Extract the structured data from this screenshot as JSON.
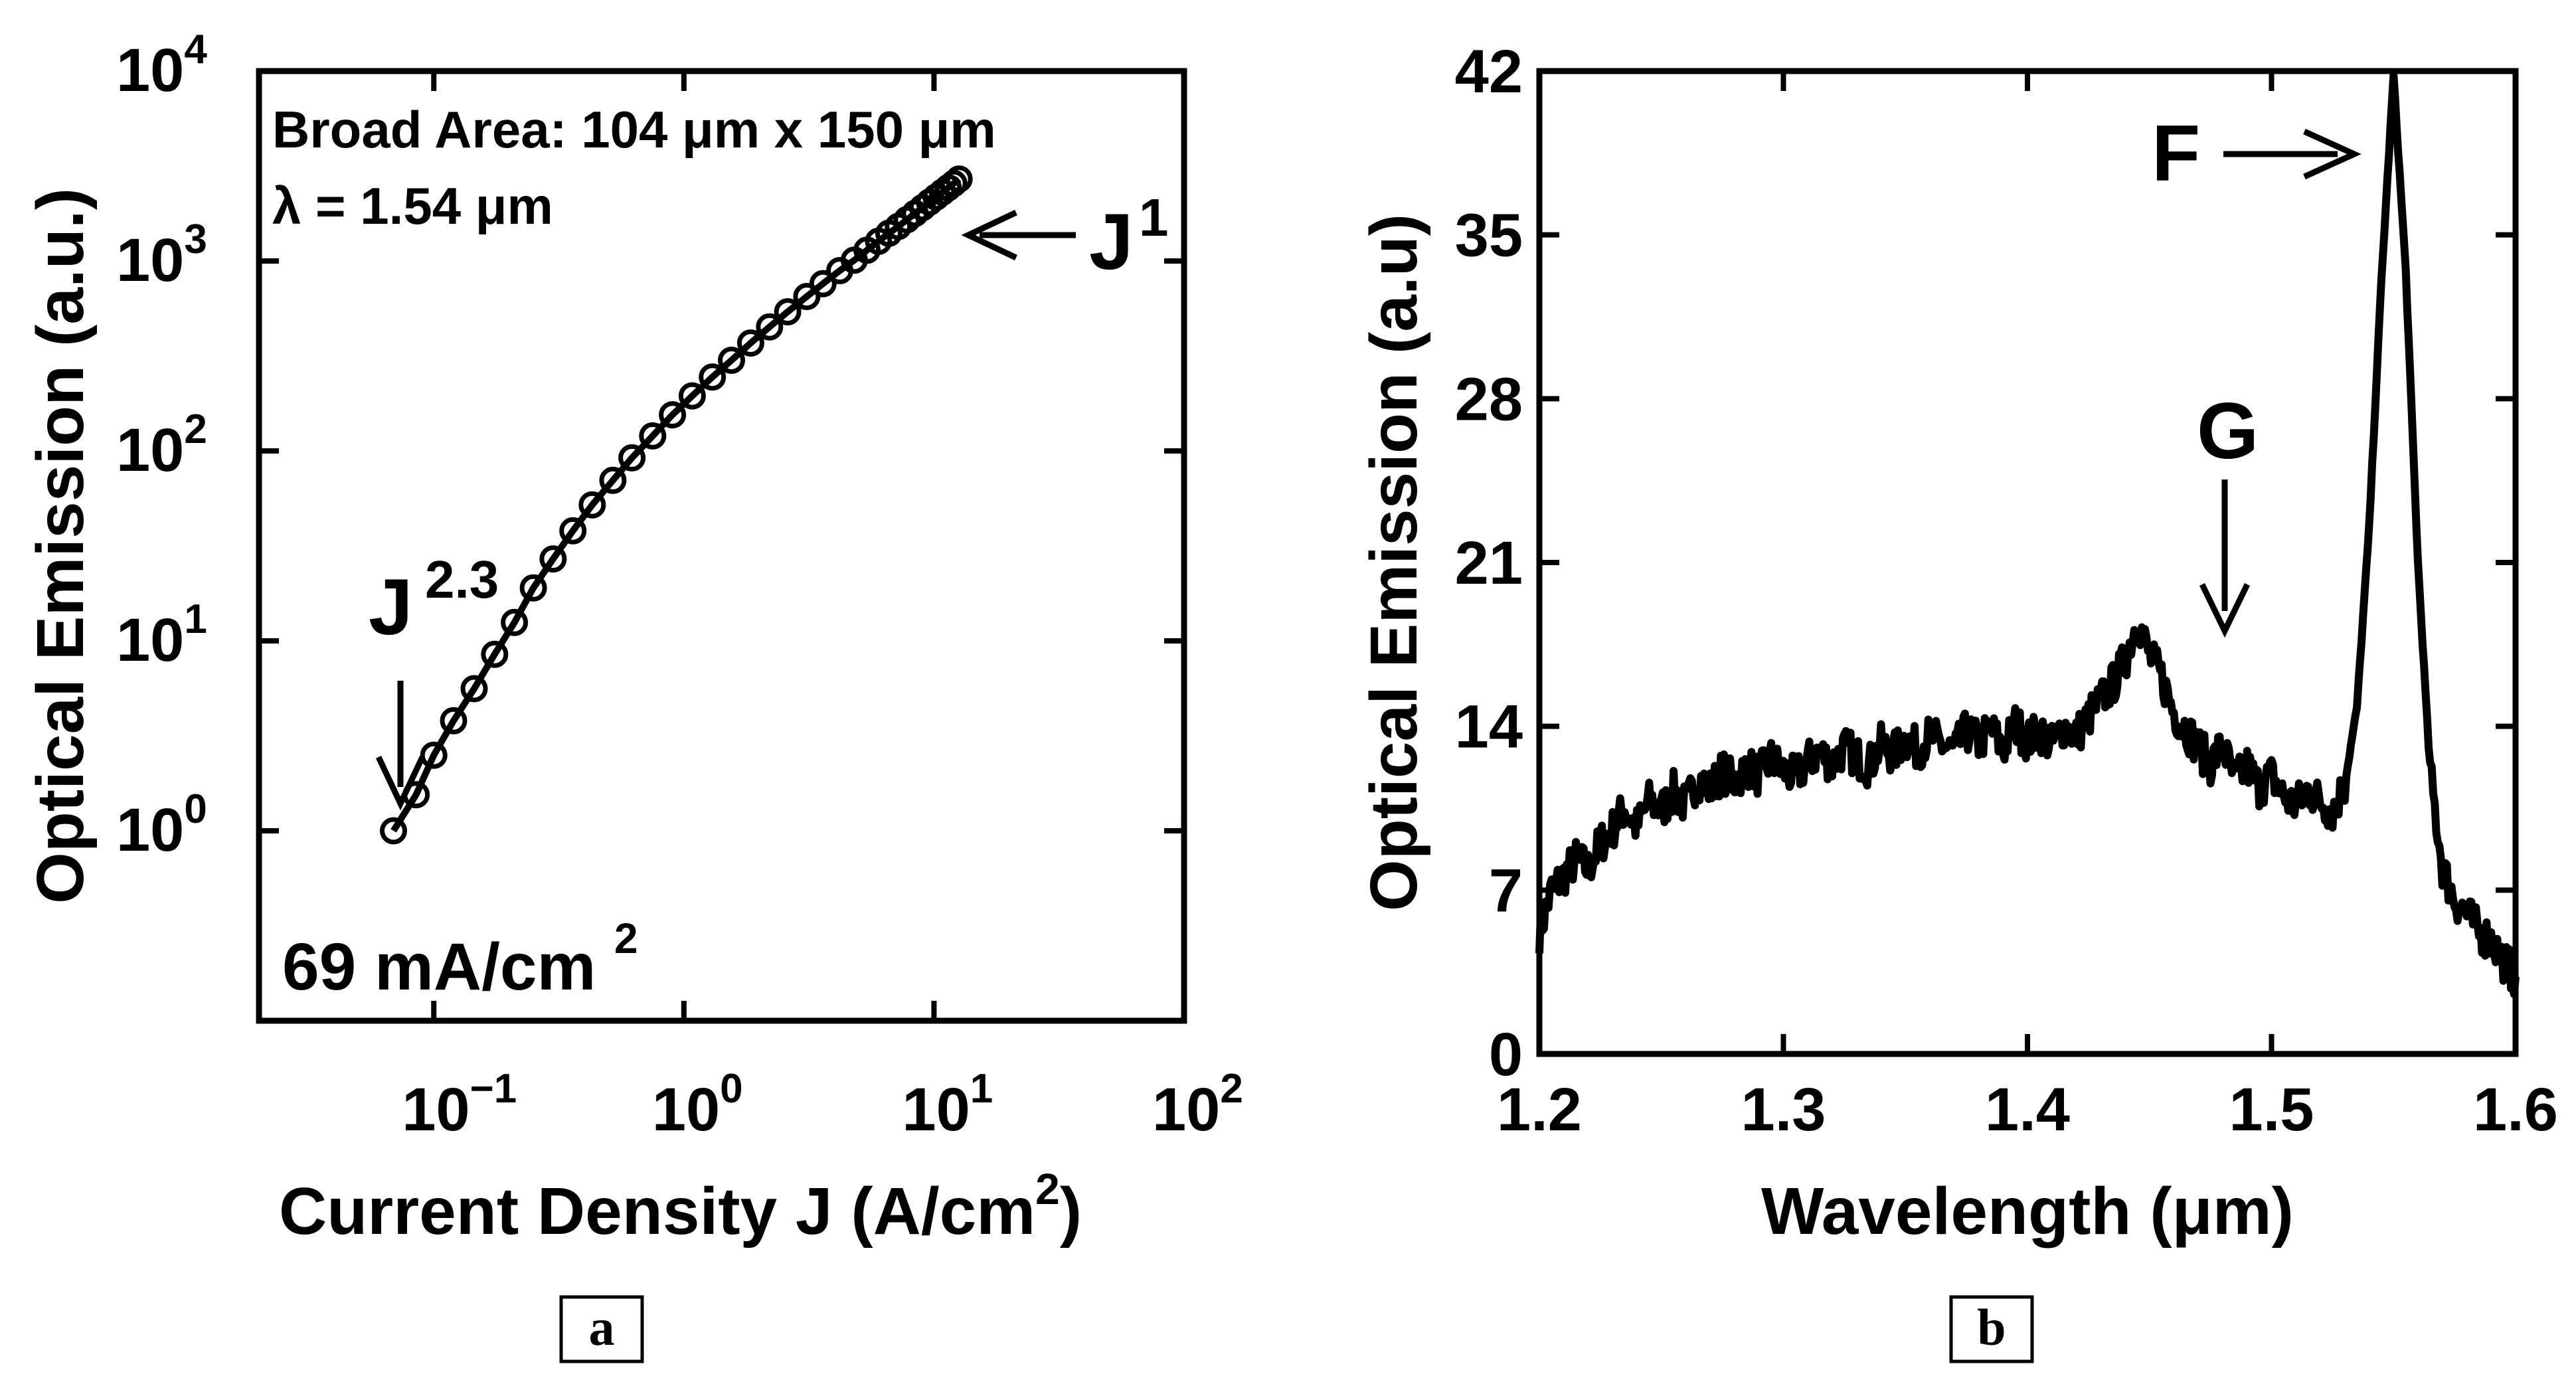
{
  "chart_data": [
    {
      "panel": "a",
      "type": "scatter",
      "scale": "log-log",
      "xlabel": "Current Density J (A/cm",
      "xlabel_sup": "2",
      "xlabel_end": ")",
      "ylabel": "Optical Emission (a.u.)",
      "xlim": [
        0.02,
        100
      ],
      "ylim": [
        0.1,
        10000
      ],
      "xticks": [
        {
          "base": "10",
          "exp": "−1",
          "value": 0.1
        },
        {
          "base": "10",
          "exp": "0",
          "value": 1
        },
        {
          "base": "10",
          "exp": "1",
          "value": 10
        },
        {
          "base": "10",
          "exp": "2",
          "value": 100
        }
      ],
      "yticks": [
        {
          "base": "10",
          "exp": "0",
          "value": 1
        },
        {
          "base": "10",
          "exp": "1",
          "value": 10
        },
        {
          "base": "10",
          "exp": "2",
          "value": 100
        },
        {
          "base": "10",
          "exp": "3",
          "value": 1000
        },
        {
          "base": "10",
          "exp": "4",
          "value": 10000
        }
      ],
      "annotation_line1": "Broad Area: 104 μm x 150 μm",
      "annotation_line2": "λ = 1.54 μm",
      "slope_low_base": "J",
      "slope_low_exp": "2.3",
      "slope_high_base": "J",
      "slope_high_exp": "1",
      "threshold_text": "69 mA/cm",
      "threshold_sup": "2",
      "x": [
        0.069,
        0.085,
        0.1,
        0.12,
        0.145,
        0.175,
        0.21,
        0.25,
        0.3,
        0.36,
        0.43,
        0.52,
        0.62,
        0.75,
        0.9,
        1.08,
        1.3,
        1.55,
        1.85,
        2.2,
        2.6,
        3.1,
        3.6,
        4.2,
        4.8,
        5.4,
        6.0,
        6.6,
        7.2,
        7.8,
        8.4,
        9.0,
        9.6,
        10.2,
        10.8,
        11.4,
        12.0,
        12.6
      ],
      "y": [
        1.0,
        1.55,
        2.5,
        3.8,
        5.6,
        8.5,
        12.5,
        19,
        27,
        38,
        52,
        70,
        92,
        120,
        155,
        195,
        245,
        300,
        370,
        450,
        540,
        650,
        760,
        890,
        1010,
        1140,
        1270,
        1400,
        1520,
        1650,
        1780,
        1910,
        2040,
        2170,
        2300,
        2430,
        2560,
        2700
      ]
    },
    {
      "panel": "b",
      "type": "line",
      "xlabel": "Wavelength (μm)",
      "ylabel": "Optical Emission (a.u)",
      "xlim": [
        1.2,
        1.6
      ],
      "ylim": [
        0,
        42
      ],
      "xticks": [
        "1.2",
        "1.3",
        "1.4",
        "1.5",
        "1.6"
      ],
      "yticks": [
        "0",
        "7",
        "14",
        "21",
        "28",
        "35",
        "42"
      ],
      "peak_F_label": "F",
      "peak_G_label": "G",
      "x": [
        1.2,
        1.205,
        1.21,
        1.215,
        1.22,
        1.225,
        1.23,
        1.235,
        1.24,
        1.245,
        1.25,
        1.255,
        1.26,
        1.265,
        1.27,
        1.275,
        1.28,
        1.285,
        1.29,
        1.295,
        1.3,
        1.305,
        1.31,
        1.315,
        1.32,
        1.325,
        1.33,
        1.335,
        1.34,
        1.345,
        1.35,
        1.355,
        1.36,
        1.365,
        1.37,
        1.375,
        1.38,
        1.385,
        1.39,
        1.395,
        1.4,
        1.405,
        1.41,
        1.415,
        1.42,
        1.425,
        1.43,
        1.435,
        1.44,
        1.445,
        1.45,
        1.455,
        1.46,
        1.465,
        1.47,
        1.475,
        1.48,
        1.485,
        1.49,
        1.495,
        1.5,
        1.505,
        1.51,
        1.515,
        1.52,
        1.525,
        1.53,
        1.535,
        1.54,
        1.545,
        1.55,
        1.555,
        1.56,
        1.565,
        1.57,
        1.575,
        1.58,
        1.585,
        1.59,
        1.595,
        1.6
      ],
      "y": [
        5.2,
        7.0,
        7.6,
        8.3,
        7.9,
        9.0,
        9.6,
        10.5,
        9.7,
        10.8,
        10.4,
        11.2,
        10.6,
        11.8,
        11.3,
        12.1,
        11.6,
        12.3,
        11.9,
        12.6,
        12.1,
        11.8,
        12.5,
        12.9,
        12.4,
        13.1,
        12.7,
        12.3,
        13.2,
        12.8,
        13.5,
        13.0,
        13.6,
        13.2,
        12.9,
        13.8,
        13.3,
        13.9,
        13.0,
        14.1,
        13.4,
        13.8,
        13.2,
        14.0,
        13.6,
        14.4,
        15.1,
        15.8,
        16.8,
        18.6,
        17.0,
        16.1,
        14.6,
        13.9,
        13.1,
        12.4,
        13.2,
        11.6,
        12.3,
        11.4,
        11.9,
        11.0,
        10.6,
        11.3,
        10.8,
        10.4,
        11.5,
        14.8,
        22.5,
        33.0,
        41.8,
        33.5,
        21.0,
        12.0,
        8.0,
        6.6,
        6.0,
        5.2,
        4.9,
        4.0,
        3.3
      ],
      "noise_amplitude": 0.9
    }
  ],
  "labels": {
    "panel_a": "a",
    "panel_b": "b"
  }
}
